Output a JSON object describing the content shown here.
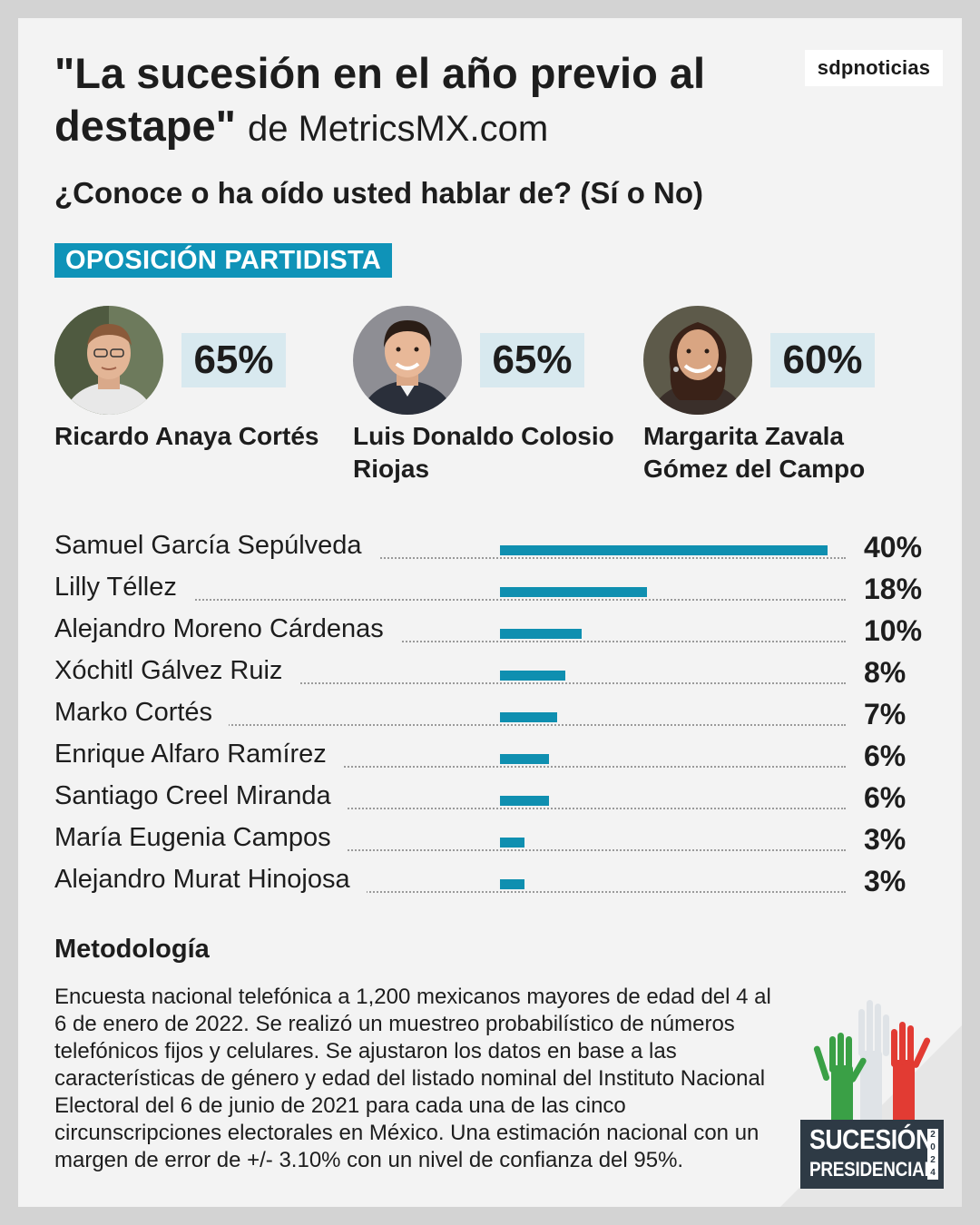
{
  "header": {
    "title": "\"La sucesión en el año previo al destape\"",
    "source": "de MetricsMX.com",
    "brand": "sdpnoticias"
  },
  "question": "¿Conoce o ha oído usted hablar de? (Sí o No)",
  "section_label": "OPOSICIÓN PARTIDISTA",
  "featured": [
    {
      "name": "Ricardo Anaya Cortés",
      "value_label": "65%",
      "value": 65
    },
    {
      "name": "Luis Donaldo Colosio Riojas",
      "value_label": "65%",
      "value": 65
    },
    {
      "name": "Margarita Zavala Gómez del Campo",
      "value_label": "60%",
      "value": 60
    }
  ],
  "chart_data": {
    "type": "bar",
    "orientation": "horizontal",
    "title": "¿Conoce o ha oído usted hablar de? (Sí o No)",
    "categories": [
      "Samuel García Sepúlveda",
      "Lilly Téllez",
      "Alejandro Moreno Cárdenas",
      "Xóchitl Gálvez Ruiz",
      "Marko Cortés",
      "Enrique Alfaro Ramírez",
      "Santiago Creel Miranda",
      "María Eugenia Campos",
      "Alejandro Murat Hinojosa"
    ],
    "values": [
      40,
      18,
      10,
      8,
      7,
      6,
      6,
      3,
      3
    ],
    "labels": [
      "40%",
      "18%",
      "10%",
      "8%",
      "7%",
      "6%",
      "6%",
      "3%",
      "3%"
    ],
    "unit": "%",
    "bar_color": "#0f8fb0",
    "xlim": [
      0,
      40
    ]
  },
  "methodology": {
    "title": "Metodología",
    "text": "Encuesta nacional telefónica a 1,200 mexicanos mayores de edad del 4 al 6 de enero de 2022. Se realizó un muestreo probabilístico de números telefónicos fijos y celulares. Se ajustaron los datos en base a las características de género y edad del listado nominal del Instituto Nacional Electoral del 6 de junio de 2021 para cada una de las cinco circunscripciones electorales en México. Una estimación nacional con un margen de error de +/- 3.10% con un nivel de confianza del 95%."
  },
  "footer_logo": {
    "line1": "SUCESIÓN",
    "line2": "PRESIDENCIAL",
    "year": "2024"
  },
  "colors": {
    "accent": "#0f93b8",
    "bar": "#0f8fb0",
    "badge_text": "#ffffff",
    "value_box": "#d8e9ef"
  },
  "icons": [
    "person-photo-icon",
    "raised-hands-icon"
  ]
}
